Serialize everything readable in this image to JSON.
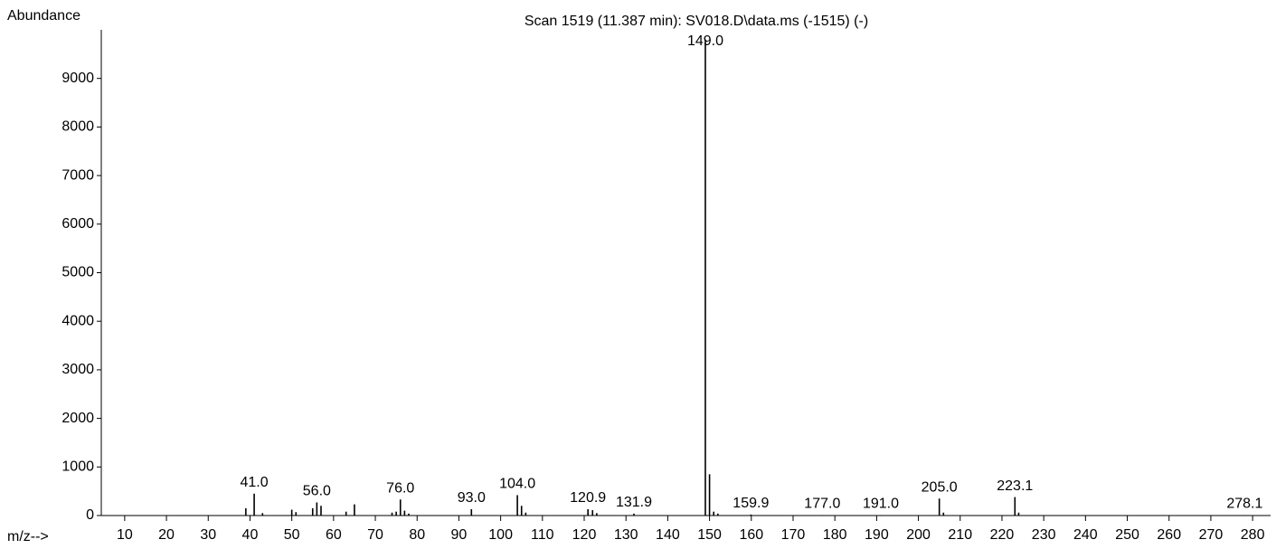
{
  "chart_data": {
    "type": "bar",
    "title": "Scan 1519 (11.387 min): SV018.D\\data.ms (-1515) (-)",
    "y_label": "Abundance",
    "x_label": "m/z-->",
    "color": "#000000",
    "xlim": [
      4.4,
      284.3
    ],
    "ylim": [
      0,
      10000
    ],
    "xticks": [
      10,
      20,
      30,
      40,
      50,
      60,
      70,
      80,
      90,
      100,
      110,
      120,
      130,
      140,
      150,
      160,
      170,
      180,
      190,
      200,
      210,
      220,
      230,
      240,
      250,
      260,
      270,
      280
    ],
    "yticks": [
      0,
      1000,
      2000,
      3000,
      4000,
      5000,
      6000,
      7000,
      8000,
      9000
    ],
    "x": [
      39,
      41,
      43,
      50,
      51,
      55,
      56,
      57,
      63,
      65,
      74,
      75,
      76,
      77,
      78,
      93,
      104,
      105,
      106,
      120.9,
      122,
      123,
      131.9,
      149,
      150,
      151,
      152,
      159.9,
      177,
      191,
      205,
      206,
      223.1,
      224,
      278.1
    ],
    "values": [
      150,
      450,
      50,
      120,
      70,
      150,
      270,
      200,
      80,
      230,
      60,
      80,
      330,
      100,
      40,
      130,
      420,
      200,
      60,
      130,
      110,
      50,
      40,
      9800,
      850,
      80,
      40,
      20,
      10,
      10,
      350,
      60,
      380,
      60,
      10
    ],
    "peak_labels": [
      {
        "value": 41,
        "label": "41.0"
      },
      {
        "value": 56,
        "label": "56.0"
      },
      {
        "value": 76,
        "label": "76.0"
      },
      {
        "value": 93,
        "label": "93.0"
      },
      {
        "value": 104,
        "label": "104.0"
      },
      {
        "value": 120.9,
        "label": "120.9"
      },
      {
        "value": 131.9,
        "label": "131.9"
      },
      {
        "value": 149,
        "label": "149.0"
      },
      {
        "value": 159.9,
        "label": "159.9"
      },
      {
        "value": 177,
        "label": "177.0"
      },
      {
        "value": 191,
        "label": "191.0"
      },
      {
        "value": 205,
        "label": "205.0"
      },
      {
        "value": 223.1,
        "label": "223.1"
      },
      {
        "value": 278.1,
        "label": "278.1"
      }
    ]
  }
}
